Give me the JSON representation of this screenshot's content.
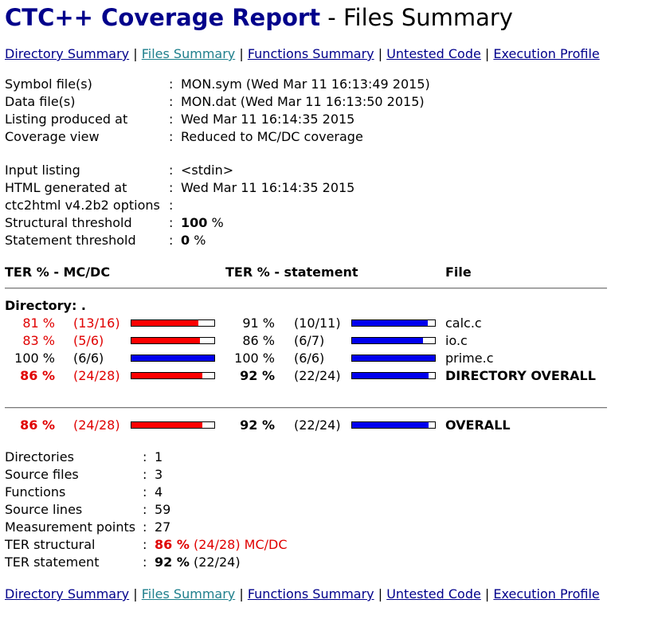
{
  "title": {
    "brand": "CTC++ Coverage Report",
    "rest": " - Files Summary"
  },
  "nav": {
    "separator": "|",
    "links": [
      "Directory Summary",
      "Files Summary",
      "Functions Summary",
      "Untested Code",
      "Execution Profile"
    ]
  },
  "info": [
    {
      "label": "Symbol file(s)",
      "value": "MON.sym (Wed Mar 11 16:13:49 2015)"
    },
    {
      "label": "Data file(s)",
      "value": "MON.dat (Wed Mar 11 16:13:50 2015)"
    },
    {
      "label": "Listing produced at",
      "value": "Wed Mar 11 16:14:35 2015"
    },
    {
      "label": "Coverage view",
      "value": "Reduced to MC/DC coverage"
    },
    {
      "label": "Input listing",
      "value": "<stdin>"
    },
    {
      "label": "HTML generated at",
      "value": "Wed Mar 11 16:14:35 2015"
    },
    {
      "label": "ctc2html v4.2b2 options",
      "value": ""
    }
  ],
  "structural_threshold": {
    "label": "Structural threshold",
    "value": "100",
    "unit": "%"
  },
  "statement_threshold": {
    "label": "Statement threshold",
    "value": "0",
    "unit": "%"
  },
  "colon": ":",
  "table": {
    "headers": {
      "mcdc": "TER % - MC/DC",
      "statement": "TER % - statement",
      "file": "File"
    },
    "directory_label": "Directory: .",
    "rows": [
      {
        "mcdc_pct": "81 %",
        "mcdc_frac": "(13/16)",
        "mcdc_fill": 0.81,
        "stmt_pct": "91 %",
        "stmt_frac": "(10/11)",
        "stmt_fill": 0.91,
        "file": "calc.c",
        "mcdc_color": "#e00000",
        "bar_color": "red"
      },
      {
        "mcdc_pct": "83 %",
        "mcdc_frac": "(5/6)",
        "mcdc_fill": 0.83,
        "stmt_pct": "86 %",
        "stmt_frac": "(6/7)",
        "stmt_fill": 0.86,
        "file": "io.c",
        "mcdc_color": "#e00000",
        "bar_color": "red"
      },
      {
        "mcdc_pct": "100 %",
        "mcdc_frac": "(6/6)",
        "mcdc_fill": 1.0,
        "stmt_pct": "100 %",
        "stmt_frac": "(6/6)",
        "stmt_fill": 1.0,
        "file": "prime.c",
        "mcdc_color": "#000000",
        "bar_color": "blue"
      }
    ],
    "directory_overall": {
      "mcdc_pct": "86 %",
      "mcdc_frac": "(24/28)",
      "mcdc_fill": 0.86,
      "stmt_pct": "92 %",
      "stmt_frac": "(22/24)",
      "stmt_fill": 0.92,
      "file": "DIRECTORY OVERALL"
    },
    "overall": {
      "mcdc_pct": "86 %",
      "mcdc_frac": "(24/28)",
      "mcdc_fill": 0.86,
      "stmt_pct": "92 %",
      "stmt_frac": "(22/24)",
      "stmt_fill": 0.92,
      "file": "OVERALL"
    }
  },
  "summary": [
    {
      "label": "Directories",
      "value": "1"
    },
    {
      "label": "Source files",
      "value": "3"
    },
    {
      "label": "Functions",
      "value": "4"
    },
    {
      "label": "Source lines",
      "value": "59"
    },
    {
      "label": "Measurement points",
      "value": "27"
    }
  ],
  "ter_structural": {
    "label": "TER structural",
    "pct": "86 %",
    "rest": "(24/28) MC/DC"
  },
  "ter_statement": {
    "label": "TER statement",
    "pct": "92 %",
    "rest": "(22/24)"
  },
  "colors": {
    "brand": "#00008b",
    "link": "#00008b",
    "visited_link": "#1e7f8c",
    "warn": "#e00000",
    "bar_red": "#ff0000",
    "bar_blue": "#0000ee"
  }
}
